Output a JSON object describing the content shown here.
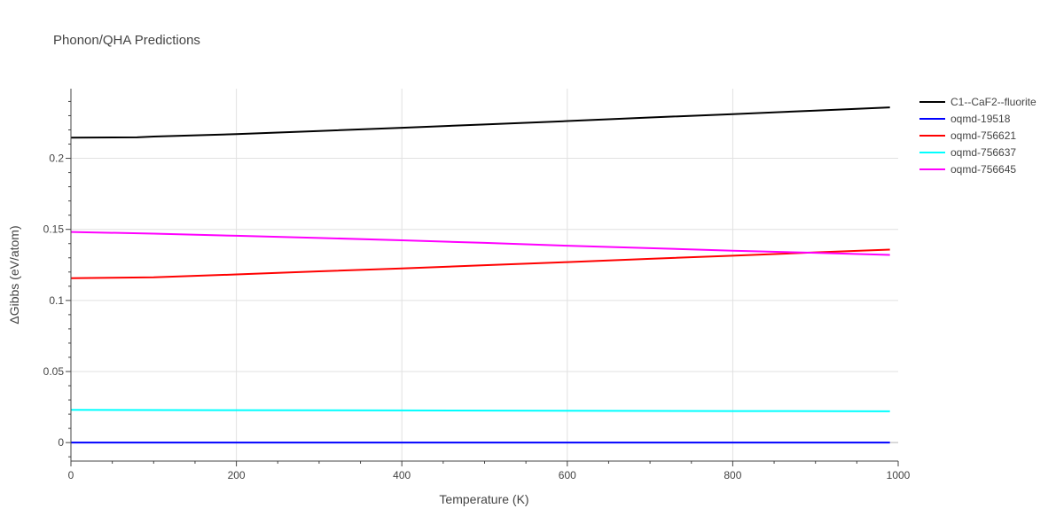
{
  "chart_data": {
    "type": "line",
    "title": "Phonon/QHA Predictions",
    "xlabel": "Temperature (K)",
    "ylabel": "ΔGibbs (eV/atom)",
    "xlim": [
      0,
      1000
    ],
    "ylim": [
      -0.013,
      0.249
    ],
    "x_ticks": [
      0,
      200,
      400,
      600,
      800,
      1000
    ],
    "y_ticks": [
      0,
      0.05,
      0.1,
      0.15,
      0.2
    ],
    "x_tick_labels": [
      "0",
      "200",
      "400",
      "600",
      "800",
      "1000"
    ],
    "y_tick_labels": [
      "0",
      "0.05",
      "0.1",
      "0.15",
      "0.2"
    ],
    "grid": true,
    "legend_position": "top-right",
    "series": [
      {
        "name": "C1--CaF2--fluorite",
        "color": "#000000",
        "x": [
          0,
          80,
          100,
          200,
          300,
          400,
          500,
          600,
          700,
          800,
          900,
          990
        ],
        "y": [
          0.2145,
          0.2148,
          0.2153,
          0.217,
          0.2192,
          0.2215,
          0.2238,
          0.2262,
          0.2287,
          0.2311,
          0.2336,
          0.2358
        ]
      },
      {
        "name": "oqmd-19518",
        "color": "#0000ff",
        "x": [
          0,
          990
        ],
        "y": [
          0.0,
          0.0
        ]
      },
      {
        "name": "oqmd-756621",
        "color": "#ff0000",
        "x": [
          0,
          50,
          100,
          200,
          300,
          400,
          500,
          600,
          700,
          800,
          900,
          990
        ],
        "y": [
          0.1157,
          0.116,
          0.1163,
          0.1183,
          0.1205,
          0.1225,
          0.1248,
          0.127,
          0.1293,
          0.1315,
          0.1338,
          0.1358
        ]
      },
      {
        "name": "oqmd-756637",
        "color": "#00ffff",
        "x": [
          0,
          200,
          400,
          600,
          800,
          990
        ],
        "y": [
          0.023,
          0.0228,
          0.0226,
          0.0224,
          0.0222,
          0.022
        ]
      },
      {
        "name": "oqmd-756645",
        "color": "#ff00ff",
        "x": [
          0,
          100,
          200,
          300,
          400,
          500,
          600,
          700,
          800,
          900,
          990
        ],
        "y": [
          0.1482,
          0.147,
          0.1455,
          0.144,
          0.1423,
          0.1405,
          0.1385,
          0.1368,
          0.135,
          0.1335,
          0.132
        ]
      }
    ]
  }
}
